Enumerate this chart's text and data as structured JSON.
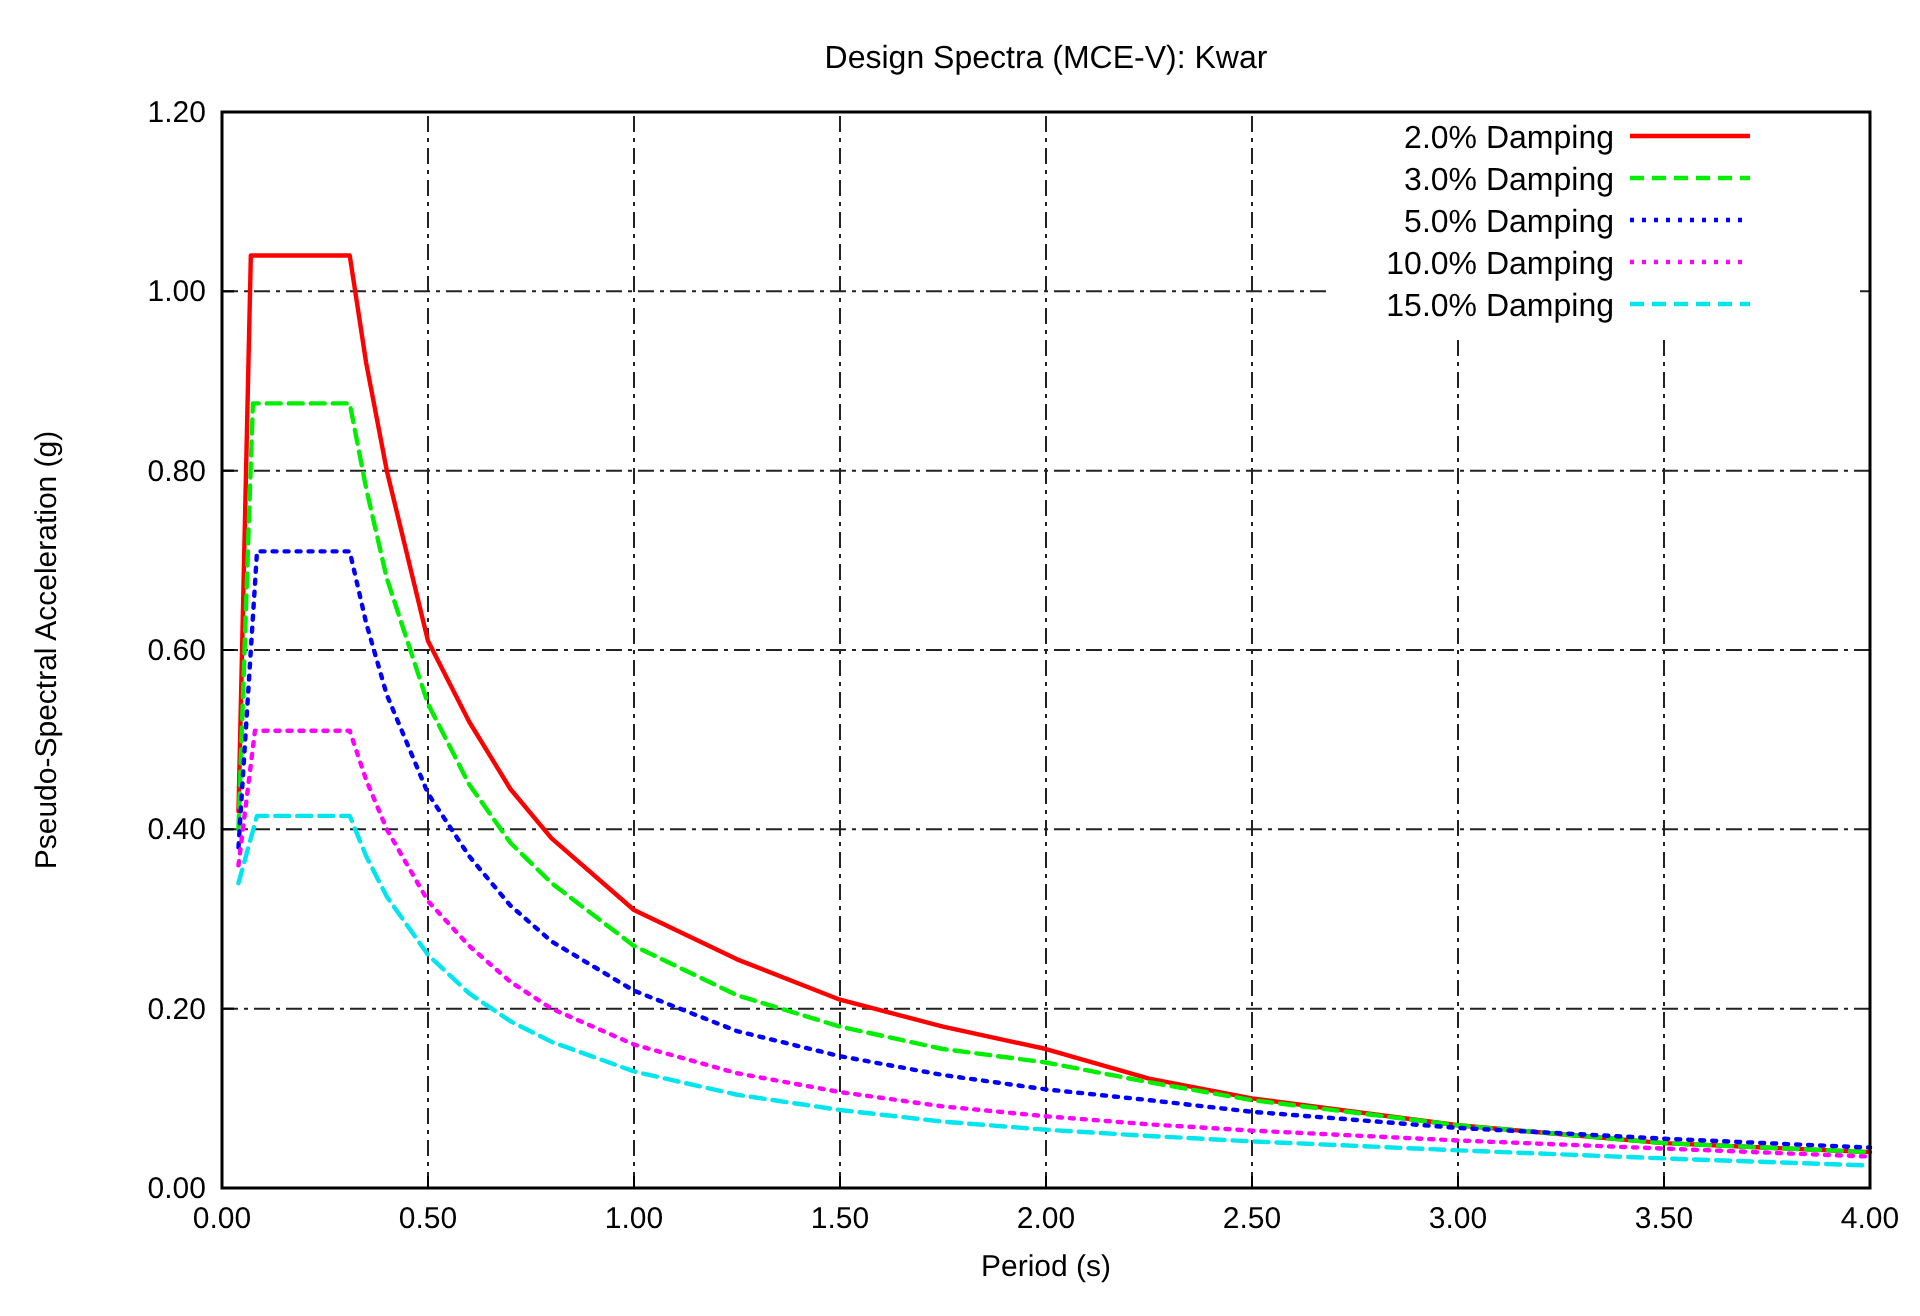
{
  "chart_data": {
    "type": "line",
    "title": "Design Spectra (MCE-V): Kwar",
    "xlabel": "Period (s)",
    "ylabel": "Pseudo-Spectral Acceleration (g)",
    "xlim": [
      0,
      4
    ],
    "ylim": [
      0,
      1.2
    ],
    "xticks": [
      {
        "value": 0,
        "label": "0.00"
      },
      {
        "value": 0.5,
        "label": "0.50"
      },
      {
        "value": 1,
        "label": "1.00"
      },
      {
        "value": 1.5,
        "label": "1.50"
      },
      {
        "value": 2,
        "label": "2.00"
      },
      {
        "value": 2.5,
        "label": "2.50"
      },
      {
        "value": 3,
        "label": "3.00"
      },
      {
        "value": 3.5,
        "label": "3.50"
      },
      {
        "value": 4,
        "label": "4.00"
      }
    ],
    "yticks": [
      {
        "value": 0,
        "label": "0.00"
      },
      {
        "value": 0.2,
        "label": "0.20"
      },
      {
        "value": 0.4,
        "label": "0.40"
      },
      {
        "value": 0.6,
        "label": "0.60"
      },
      {
        "value": 0.8,
        "label": "0.80"
      },
      {
        "value": 1,
        "label": "1.00"
      },
      {
        "value": 1.2,
        "label": "1.20"
      }
    ],
    "grid": true,
    "legend": "top right",
    "marker": "none",
    "series": [
      {
        "name": "2.0% Damping",
        "color": "#ff0000",
        "line_style": "solid",
        "x": [
          0.04,
          0.07,
          0.31,
          0.35,
          0.4,
          0.5,
          0.6,
          0.7,
          0.8,
          1.0,
          1.25,
          1.5,
          1.75,
          2.0,
          2.25,
          2.5,
          3.0,
          3.5,
          4.0
        ],
        "values": [
          0.42,
          1.04,
          1.04,
          0.92,
          0.8,
          0.61,
          0.52,
          0.445,
          0.39,
          0.31,
          0.255,
          0.21,
          0.18,
          0.155,
          0.122,
          0.1,
          0.07,
          0.05,
          0.04
        ]
      },
      {
        "name": "3.0% Damping",
        "color": "#00ee00",
        "line_style": "dashed",
        "x": [
          0.04,
          0.075,
          0.31,
          0.35,
          0.4,
          0.5,
          0.6,
          0.7,
          0.8,
          1.0,
          1.25,
          1.5,
          1.75,
          2.0,
          2.25,
          2.5,
          3.0,
          3.5,
          4.0
        ],
        "values": [
          0.4,
          0.875,
          0.875,
          0.78,
          0.68,
          0.54,
          0.45,
          0.385,
          0.34,
          0.27,
          0.215,
          0.18,
          0.155,
          0.14,
          0.118,
          0.098,
          0.07,
          0.05,
          0.04
        ]
      },
      {
        "name": "5.0% Damping",
        "color": "#0000ff",
        "line_style": "dotted",
        "x": [
          0.04,
          0.085,
          0.31,
          0.35,
          0.4,
          0.5,
          0.6,
          0.7,
          0.8,
          1.0,
          1.25,
          1.5,
          1.75,
          2.0,
          2.25,
          2.5,
          3.0,
          3.5,
          4.0
        ],
        "values": [
          0.38,
          0.71,
          0.71,
          0.63,
          0.55,
          0.44,
          0.37,
          0.315,
          0.275,
          0.22,
          0.175,
          0.147,
          0.126,
          0.11,
          0.098,
          0.085,
          0.067,
          0.055,
          0.045
        ]
      },
      {
        "name": "10.0% Damping",
        "color": "#ff00ff",
        "line_style": "dotted",
        "x": [
          0.04,
          0.08,
          0.31,
          0.35,
          0.4,
          0.5,
          0.6,
          0.7,
          0.8,
          1.0,
          1.25,
          1.5,
          1.75,
          2.0,
          2.25,
          2.5,
          3.0,
          3.5,
          4.0
        ],
        "values": [
          0.36,
          0.51,
          0.51,
          0.455,
          0.4,
          0.32,
          0.27,
          0.23,
          0.2,
          0.16,
          0.128,
          0.107,
          0.091,
          0.08,
          0.071,
          0.064,
          0.053,
          0.044,
          0.035
        ]
      },
      {
        "name": "15.0% Damping",
        "color": "#00e5ee",
        "line_style": "dashed",
        "x": [
          0.04,
          0.085,
          0.31,
          0.35,
          0.4,
          0.5,
          0.6,
          0.7,
          0.8,
          1.0,
          1.25,
          1.5,
          1.75,
          2.0,
          2.25,
          2.5,
          3.0,
          3.5,
          4.0
        ],
        "values": [
          0.34,
          0.415,
          0.415,
          0.37,
          0.325,
          0.26,
          0.217,
          0.186,
          0.163,
          0.13,
          0.104,
          0.087,
          0.074,
          0.065,
          0.058,
          0.052,
          0.042,
          0.033,
          0.025
        ]
      }
    ]
  }
}
